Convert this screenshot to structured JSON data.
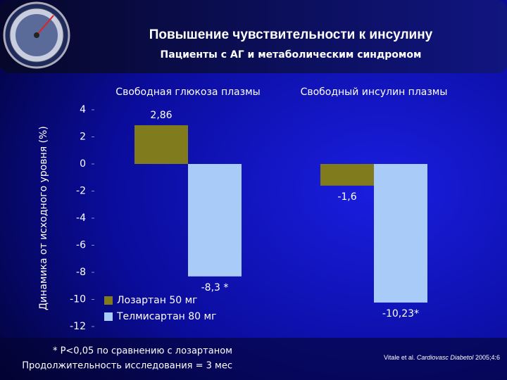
{
  "chart_data": {
    "type": "bar",
    "title": "Повышение чувствительности к инсулину",
    "subtitle": "Пациенты с  АГ и метаболическим синдромом",
    "y_label": "Динамика от исходного уровня (%)",
    "categories": [
      "Свободная глюкоза плазмы",
      "Свободный инсулин плазмы"
    ],
    "series": [
      {
        "name": "Лозартан 50 мг",
        "color": "#807c1e",
        "values": [
          2.86,
          -1.6
        ],
        "value_labels": [
          "2,86",
          "-1,6"
        ]
      },
      {
        "name": "Телмисартан 80 мг",
        "color": "#a9cbf7",
        "values": [
          -8.3,
          -10.23
        ],
        "value_labels": [
          "-8,3 *",
          "-10,23*"
        ]
      }
    ],
    "ylim": [
      -12,
      4
    ],
    "yticks": [
      4,
      2,
      0,
      -2,
      -4,
      -6,
      -8,
      -10,
      -12
    ],
    "legend": "lower-left",
    "footnotes": [
      "* P<0,05 по сравнению с лозартаном",
      "Продолжительность исследования = 3 мес"
    ],
    "citation": {
      "authors": "Vitale et al.",
      "journal": "Cardiovasc Diabetol",
      "ref": "2005;4:6"
    }
  }
}
